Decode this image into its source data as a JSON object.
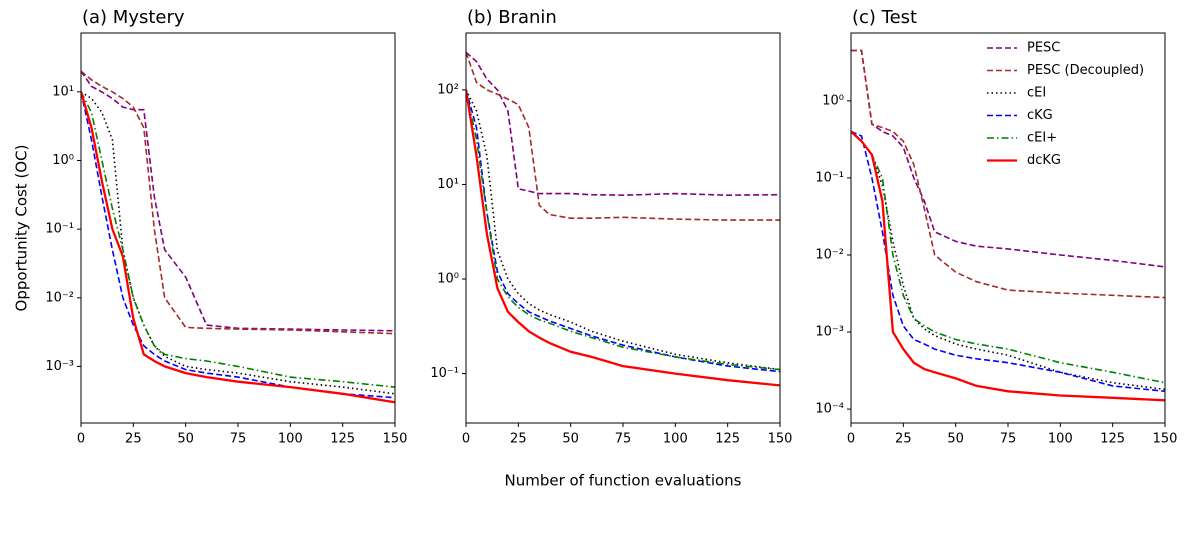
{
  "chart_data": [
    {
      "type": "line",
      "title": "(a) Mystery",
      "ylabel": "Opportunity Cost (OC)",
      "log_y": true,
      "x": [
        0,
        5,
        10,
        15,
        20,
        25,
        30,
        35,
        40,
        50,
        60,
        75,
        100,
        125,
        150
      ],
      "xlim": [
        0,
        150
      ],
      "xticks": [
        0,
        25,
        50,
        75,
        100,
        125,
        150
      ],
      "ylim": [
        0.00015,
        72
      ],
      "yticks": [
        {
          "value": 0.001,
          "label": "10⁻³"
        },
        {
          "value": 0.01,
          "label": "10⁻²"
        },
        {
          "value": 0.1,
          "label": "10⁻¹"
        },
        {
          "value": 1,
          "label": "10⁰"
        },
        {
          "value": 10,
          "label": "10¹"
        }
      ],
      "series": [
        {
          "color": "#800080",
          "linestyle": "dashed",
          "values": [
            20,
            12,
            10,
            8,
            6,
            5.5,
            5.5,
            0.3,
            0.05,
            0.02,
            0.004,
            0.0036,
            0.0035,
            0.0034,
            0.0033
          ]
        },
        {
          "color": "#a52a2a",
          "linestyle": "dashed",
          "values": [
            20,
            15,
            12,
            10,
            8,
            6,
            3,
            0.1,
            0.01,
            0.0037,
            0.0036,
            0.0035,
            0.0034,
            0.0032,
            0.003
          ]
        },
        {
          "color": "#000000",
          "linestyle": "dotted",
          "values": [
            10,
            8,
            5,
            2,
            0.05,
            0.01,
            0.004,
            0.002,
            0.0014,
            0.001,
            0.0009,
            0.0008,
            0.0006,
            0.0005,
            0.0004
          ]
        },
        {
          "color": "#0000ff",
          "linestyle": "dashed",
          "values": [
            10,
            2,
            0.3,
            0.05,
            0.01,
            0.004,
            0.002,
            0.0015,
            0.0012,
            0.0009,
            0.0008,
            0.0007,
            0.0005,
            0.0004,
            0.00035
          ]
        },
        {
          "color": "#008000",
          "linestyle": "dashdot",
          "values": [
            10,
            5,
            1,
            0.2,
            0.05,
            0.01,
            0.004,
            0.002,
            0.0015,
            0.0013,
            0.0012,
            0.001,
            0.0007,
            0.0006,
            0.0005
          ]
        },
        {
          "color": "#ff0000",
          "linestyle": "solid",
          "values": [
            10,
            3,
            0.5,
            0.1,
            0.04,
            0.005,
            0.0015,
            0.0012,
            0.001,
            0.0008,
            0.0007,
            0.0006,
            0.0005,
            0.0004,
            0.0003
          ]
        }
      ]
    },
    {
      "type": "line",
      "title": "(b) Branin",
      "xlabel": "Number of function evaluations",
      "log_y": true,
      "x": [
        0,
        5,
        10,
        15,
        20,
        25,
        30,
        35,
        40,
        50,
        60,
        75,
        100,
        125,
        150
      ],
      "xlim": [
        0,
        150
      ],
      "xticks": [
        0,
        25,
        50,
        75,
        100,
        125,
        150
      ],
      "ylim": [
        0.03,
        400
      ],
      "yticks": [
        {
          "value": 0.1,
          "label": "10⁻¹"
        },
        {
          "value": 1,
          "label": "10⁰"
        },
        {
          "value": 10,
          "label": "10¹"
        },
        {
          "value": 100,
          "label": "10²"
        }
      ],
      "series": [
        {
          "color": "#800080",
          "linestyle": "dashed",
          "values": [
            250,
            200,
            130,
            100,
            60,
            9,
            8.5,
            8,
            8,
            8,
            7.8,
            7.7,
            8,
            7.7,
            7.8
          ]
        },
        {
          "color": "#a52a2a",
          "linestyle": "dashed",
          "values": [
            250,
            120,
            100,
            90,
            80,
            70,
            40,
            6,
            4.8,
            4.4,
            4.4,
            4.5,
            4.3,
            4.2,
            4.2
          ]
        },
        {
          "color": "#000000",
          "linestyle": "dotted",
          "values": [
            100,
            60,
            20,
            2,
            1.0,
            0.7,
            0.55,
            0.47,
            0.42,
            0.35,
            0.28,
            0.22,
            0.16,
            0.13,
            0.11
          ]
        },
        {
          "color": "#0000ff",
          "linestyle": "dashed",
          "values": [
            100,
            40,
            5,
            1.2,
            0.7,
            0.55,
            0.45,
            0.4,
            0.36,
            0.3,
            0.25,
            0.2,
            0.15,
            0.12,
            0.105
          ]
        },
        {
          "color": "#008000",
          "linestyle": "dashdot",
          "values": [
            100,
            30,
            5,
            1.0,
            0.65,
            0.5,
            0.42,
            0.37,
            0.34,
            0.28,
            0.24,
            0.19,
            0.15,
            0.125,
            0.11
          ]
        },
        {
          "color": "#ff0000",
          "linestyle": "solid",
          "values": [
            100,
            20,
            3,
            0.8,
            0.45,
            0.35,
            0.28,
            0.24,
            0.21,
            0.17,
            0.15,
            0.12,
            0.1,
            0.085,
            0.075
          ]
        }
      ]
    },
    {
      "type": "line",
      "title": "(c) Test",
      "log_y": true,
      "legend": "upper right",
      "x": [
        0,
        5,
        10,
        15,
        20,
        25,
        30,
        35,
        40,
        50,
        60,
        75,
        100,
        125,
        150
      ],
      "xlim": [
        0,
        150
      ],
      "xticks": [
        0,
        25,
        50,
        75,
        100,
        125,
        150
      ],
      "ylim": [
        6.6e-05,
        7.6
      ],
      "yticks": [
        {
          "value": 0.0001,
          "label": "10⁻⁴"
        },
        {
          "value": 0.001,
          "label": "10⁻³"
        },
        {
          "value": 0.01,
          "label": "10⁻²"
        },
        {
          "value": 0.1,
          "label": "10⁻¹"
        },
        {
          "value": 1,
          "label": "10⁰"
        }
      ],
      "series": [
        {
          "name": "PESC",
          "color": "#800080",
          "linestyle": "dashed",
          "values": [
            4.5,
            4.5,
            0.5,
            0.4,
            0.35,
            0.25,
            0.1,
            0.05,
            0.02,
            0.015,
            0.013,
            0.012,
            0.01,
            0.0085,
            0.007
          ]
        },
        {
          "name": "PESC (Decoupled)",
          "color": "#a52a2a",
          "linestyle": "dashed",
          "values": [
            4.5,
            4.5,
            0.5,
            0.45,
            0.4,
            0.3,
            0.15,
            0.04,
            0.01,
            0.006,
            0.0045,
            0.0035,
            0.0032,
            0.003,
            0.0028
          ]
        },
        {
          "name": "cEI",
          "color": "#000000",
          "linestyle": "dotted",
          "values": [
            0.4,
            0.3,
            0.2,
            0.08,
            0.015,
            0.004,
            0.0015,
            0.0011,
            0.0009,
            0.0007,
            0.0006,
            0.0005,
            0.0003,
            0.00022,
            0.00018
          ]
        },
        {
          "name": "cKG",
          "color": "#0000ff",
          "linestyle": "dashed",
          "values": [
            0.4,
            0.35,
            0.1,
            0.02,
            0.003,
            0.0012,
            0.0008,
            0.0007,
            0.0006,
            0.0005,
            0.00045,
            0.0004,
            0.0003,
            0.0002,
            0.00017
          ]
        },
        {
          "name": "cEI+",
          "color": "#008000",
          "linestyle": "dashdot",
          "values": [
            0.4,
            0.3,
            0.2,
            0.1,
            0.01,
            0.003,
            0.0015,
            0.0012,
            0.001,
            0.0008,
            0.0007,
            0.0006,
            0.0004,
            0.0003,
            0.00022
          ]
        },
        {
          "name": "dcKG",
          "color": "#ff0000",
          "linestyle": "solid",
          "values": [
            0.4,
            0.3,
            0.2,
            0.05,
            0.001,
            0.0006,
            0.0004,
            0.00033,
            0.0003,
            0.00025,
            0.0002,
            0.00017,
            0.00015,
            0.00014,
            0.00013
          ]
        }
      ]
    }
  ]
}
